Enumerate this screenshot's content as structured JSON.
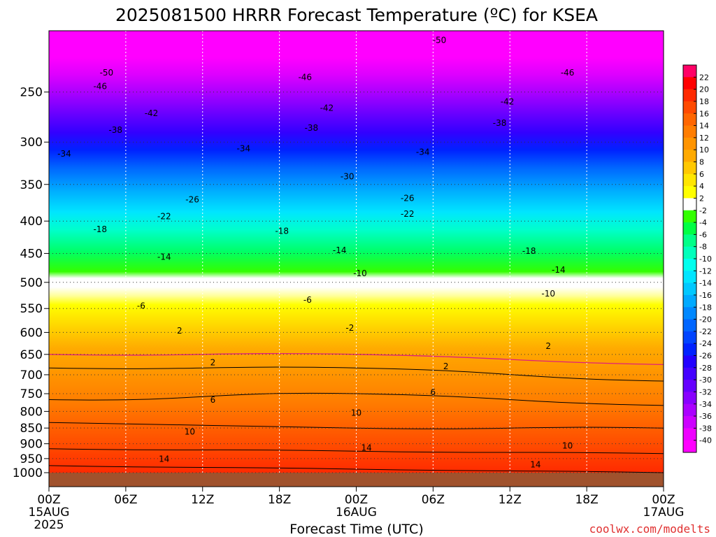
{
  "title": "2025081500 HRRR Forecast Temperature (ºC) for KSEA",
  "credit": "coolwx.com/modelts",
  "chart_data": {
    "type": "heatmap",
    "title": "2025081500 HRRR Forecast Temperature (ºC) for KSEA",
    "xlabel": "Forecast Time (UTC)",
    "ylabel": "",
    "x_range_hours": [
      0,
      48
    ],
    "y_range_hpa": [
      1000,
      200
    ],
    "y_scale": "log-pressure",
    "x_ticks": [
      {
        "hour": 0,
        "label": "00Z",
        "sub1": "15AUG",
        "sub2": "2025"
      },
      {
        "hour": 6,
        "label": "06Z",
        "sub1": "",
        "sub2": ""
      },
      {
        "hour": 12,
        "label": "12Z",
        "sub1": "",
        "sub2": ""
      },
      {
        "hour": 18,
        "label": "18Z",
        "sub1": "",
        "sub2": ""
      },
      {
        "hour": 24,
        "label": "00Z",
        "sub1": "16AUG",
        "sub2": ""
      },
      {
        "hour": 30,
        "label": "06Z",
        "sub1": "",
        "sub2": ""
      },
      {
        "hour": 36,
        "label": "12Z",
        "sub1": "",
        "sub2": ""
      },
      {
        "hour": 42,
        "label": "18Z",
        "sub1": "",
        "sub2": ""
      },
      {
        "hour": 48,
        "label": "00Z",
        "sub1": "17AUG",
        "sub2": ""
      }
    ],
    "y_ticks": [
      250,
      300,
      350,
      400,
      450,
      500,
      550,
      600,
      650,
      700,
      750,
      800,
      850,
      900,
      950,
      1000
    ],
    "grid": true,
    "colorbar": {
      "position": "right",
      "levels": [
        22,
        20,
        18,
        16,
        14,
        12,
        10,
        8,
        6,
        4,
        2,
        -2,
        -4,
        -6,
        -8,
        -10,
        -12,
        -14,
        -16,
        -18,
        -20,
        -22,
        -24,
        -26,
        -28,
        -30,
        -32,
        -34,
        -36,
        -38,
        -40
      ],
      "colors": [
        "#ff0066",
        "#ff0000",
        "#ff2a00",
        "#ff4a00",
        "#ff6600",
        "#ff7d00",
        "#ff9400",
        "#ffaa00",
        "#ffc800",
        "#ffe600",
        "#ffff00",
        "#ffffff",
        "#33ff00",
        "#00ff44",
        "#00ff88",
        "#00ffbb",
        "#00ffee",
        "#00e5ff",
        "#00c8ff",
        "#00aaff",
        "#0088ff",
        "#0066ff",
        "#0044ff",
        "#0022ff",
        "#2200ff",
        "#4400ff",
        "#6600ff",
        "#8800ff",
        "#aa00ff",
        "#cc00ff",
        "#ee00ff",
        "#ff00ff"
      ]
    },
    "temperature_profile": {
      "pressure_hpa": [
        1000,
        950,
        900,
        850,
        800,
        750,
        700,
        650,
        600,
        550,
        500,
        450,
        400,
        350,
        300,
        250,
        200
      ],
      "temp_c_hour0": [
        20,
        16,
        13,
        11,
        8,
        5,
        3,
        0,
        -3,
        -7,
        -11,
        -16,
        -21,
        -28,
        -35,
        -45,
        -52
      ],
      "temp_c_hour24": [
        19,
        15,
        13,
        10,
        8,
        6,
        3,
        0,
        -3,
        -6,
        -10,
        -15,
        -21,
        -27,
        -34,
        -44,
        -52
      ],
      "temp_c_hour48": [
        18,
        15,
        12,
        10,
        7,
        4,
        1,
        -1,
        -4,
        -8,
        -12,
        -16,
        -22,
        -29,
        -36,
        -45,
        -52
      ]
    },
    "contour_labels": [
      {
        "text": "-50",
        "hour": 30.5,
        "p": 207
      },
      {
        "text": "-50",
        "hour": 4.5,
        "p": 233
      },
      {
        "text": "-46",
        "hour": 4.0,
        "p": 245
      },
      {
        "text": "-46",
        "hour": 20.0,
        "p": 237
      },
      {
        "text": "-46",
        "hour": 40.5,
        "p": 233
      },
      {
        "text": "-42",
        "hour": 8.0,
        "p": 270
      },
      {
        "text": "-42",
        "hour": 21.7,
        "p": 265
      },
      {
        "text": "-42",
        "hour": 35.8,
        "p": 259
      },
      {
        "text": "-38",
        "hour": 5.2,
        "p": 287
      },
      {
        "text": "-38",
        "hour": 20.5,
        "p": 285
      },
      {
        "text": "-38",
        "hour": 35.2,
        "p": 280
      },
      {
        "text": "-34",
        "hour": 1.2,
        "p": 313
      },
      {
        "text": "-34",
        "hour": 15.2,
        "p": 307
      },
      {
        "text": "-34",
        "hour": 29.2,
        "p": 311
      },
      {
        "text": "-30",
        "hour": 23.3,
        "p": 340
      },
      {
        "text": "-26",
        "hour": 11.2,
        "p": 370
      },
      {
        "text": "-26",
        "hour": 28.0,
        "p": 368
      },
      {
        "text": "-22",
        "hour": 9.0,
        "p": 393
      },
      {
        "text": "-22",
        "hour": 28.0,
        "p": 390
      },
      {
        "text": "-18",
        "hour": 4.0,
        "p": 412
      },
      {
        "text": "-18",
        "hour": 18.2,
        "p": 415
      },
      {
        "text": "-18",
        "hour": 37.5,
        "p": 446
      },
      {
        "text": "-14",
        "hour": 9.0,
        "p": 456
      },
      {
        "text": "-14",
        "hour": 22.7,
        "p": 445
      },
      {
        "text": "-14",
        "hour": 39.8,
        "p": 478
      },
      {
        "text": "-10",
        "hour": 24.3,
        "p": 484
      },
      {
        "text": "-10",
        "hour": 39.0,
        "p": 521
      },
      {
        "text": "-6",
        "hour": 7.2,
        "p": 545
      },
      {
        "text": "-6",
        "hour": 20.2,
        "p": 533
      },
      {
        "text": "-2",
        "hour": 23.5,
        "p": 590
      },
      {
        "text": "2",
        "hour": 10.2,
        "p": 596
      },
      {
        "text": "2",
        "hour": 39.0,
        "p": 631
      },
      {
        "text": "2",
        "hour": 12.8,
        "p": 670
      },
      {
        "text": "2",
        "hour": 31.0,
        "p": 679
      },
      {
        "text": "6",
        "hour": 12.8,
        "p": 767
      },
      {
        "text": "6",
        "hour": 30.0,
        "p": 746
      },
      {
        "text": "10",
        "hour": 11.0,
        "p": 862
      },
      {
        "text": "10",
        "hour": 24.0,
        "p": 804
      },
      {
        "text": "10",
        "hour": 40.5,
        "p": 907
      },
      {
        "text": "14",
        "hour": 9.0,
        "p": 951
      },
      {
        "text": "14",
        "hour": 24.8,
        "p": 914
      },
      {
        "text": "14",
        "hour": 38.0,
        "p": 971
      }
    ]
  }
}
